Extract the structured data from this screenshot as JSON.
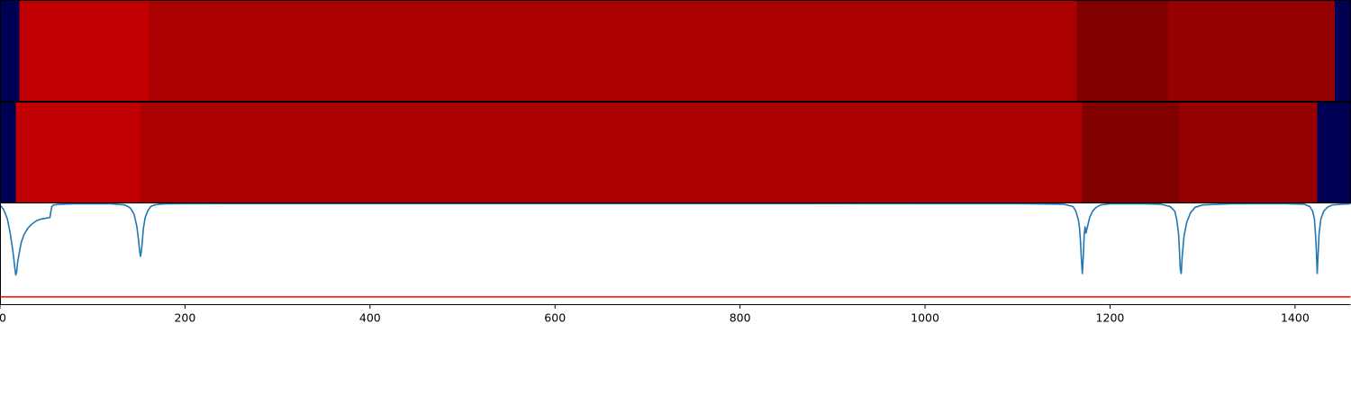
{
  "chart_data": [
    {
      "type": "heatmap",
      "title": "",
      "xlabel": "",
      "ylabel": "",
      "xlim": [
        0,
        1460
      ],
      "segments": [
        {
          "x0": 0,
          "x1": 21,
          "color": "#000055"
        },
        {
          "x0": 21,
          "x1": 161,
          "color": "#c00000"
        },
        {
          "x0": 161,
          "x1": 1164,
          "color": "#aa0000"
        },
        {
          "x0": 1164,
          "x1": 1263,
          "color": "#800000"
        },
        {
          "x0": 1263,
          "x1": 1443,
          "color": "#950000"
        },
        {
          "x0": 1443,
          "x1": 1460,
          "color": "#000055"
        }
      ]
    },
    {
      "type": "heatmap",
      "title": "",
      "xlabel": "",
      "ylabel": "",
      "xlim": [
        0,
        1460
      ],
      "segments": [
        {
          "x0": 0,
          "x1": 17,
          "color": "#000055"
        },
        {
          "x0": 17,
          "x1": 152,
          "color": "#c00000"
        },
        {
          "x0": 152,
          "x1": 1170,
          "color": "#aa0000"
        },
        {
          "x0": 1170,
          "x1": 1275,
          "color": "#800000"
        },
        {
          "x0": 1275,
          "x1": 1424,
          "color": "#950000"
        },
        {
          "x0": 1424,
          "x1": 1460,
          "color": "#000055"
        }
      ]
    },
    {
      "type": "line",
      "title": "",
      "xlabel": "",
      "ylabel": "",
      "xlim": [
        0,
        1460
      ],
      "ylim": [
        -1.3,
        0
      ],
      "x_ticks": [
        0,
        200,
        400,
        600,
        800,
        1000,
        1200,
        1400
      ],
      "grid": false,
      "series": [
        {
          "color": "#1f77b4",
          "x": [
            0,
            4,
            8,
            11,
            14,
            16,
            17,
            18,
            19,
            21,
            23,
            26,
            30,
            35,
            40,
            45,
            50,
            54,
            55,
            56,
            58,
            65,
            80,
            100,
            120,
            135,
            141,
            145,
            148,
            150,
            151,
            152,
            153,
            154,
            155,
            157,
            160,
            163,
            167,
            172,
            180,
            200,
            300,
            500,
            800,
            1100,
            1150,
            1160,
            1163,
            1166,
            1167,
            1168,
            1169,
            1170,
            1171,
            1172,
            1173,
            1174,
            1176,
            1178,
            1181,
            1185,
            1190,
            1200,
            1230,
            1255,
            1265,
            1270,
            1272,
            1274,
            1275,
            1276,
            1277,
            1278,
            1280,
            1283,
            1287,
            1292,
            1300,
            1330,
            1390,
            1410,
            1416,
            1419,
            1421,
            1422,
            1423,
            1424,
            1425,
            1426,
            1428,
            1431,
            1435,
            1440,
            1450,
            1460
          ],
          "y": [
            -0.02,
            -0.08,
            -0.2,
            -0.38,
            -0.62,
            -0.82,
            -0.92,
            -0.88,
            -0.76,
            -0.62,
            -0.5,
            -0.4,
            -0.32,
            -0.26,
            -0.22,
            -0.2,
            -0.19,
            -0.18,
            -0.1,
            -0.04,
            -0.02,
            -0.01,
            -0.005,
            -0.005,
            -0.005,
            -0.02,
            -0.06,
            -0.14,
            -0.3,
            -0.5,
            -0.62,
            -0.68,
            -0.6,
            -0.46,
            -0.32,
            -0.18,
            -0.09,
            -0.04,
            -0.02,
            -0.01,
            -0.005,
            -0.003,
            -0.002,
            -0.002,
            -0.002,
            -0.003,
            -0.01,
            -0.04,
            -0.1,
            -0.22,
            -0.32,
            -0.48,
            -0.7,
            -0.9,
            -0.7,
            -0.42,
            -0.3,
            -0.38,
            -0.28,
            -0.18,
            -0.1,
            -0.05,
            -0.02,
            -0.005,
            -0.003,
            -0.01,
            -0.04,
            -0.1,
            -0.2,
            -0.38,
            -0.6,
            -0.85,
            -0.9,
            -0.68,
            -0.42,
            -0.24,
            -0.12,
            -0.05,
            -0.02,
            -0.005,
            -0.003,
            -0.01,
            -0.04,
            -0.1,
            -0.2,
            -0.38,
            -0.6,
            -0.9,
            -0.62,
            -0.38,
            -0.2,
            -0.1,
            -0.05,
            -0.02,
            -0.01,
            -0.005
          ]
        }
      ],
      "hlines": [
        {
          "y": -1.2,
          "color": "#ff0000"
        }
      ]
    }
  ]
}
